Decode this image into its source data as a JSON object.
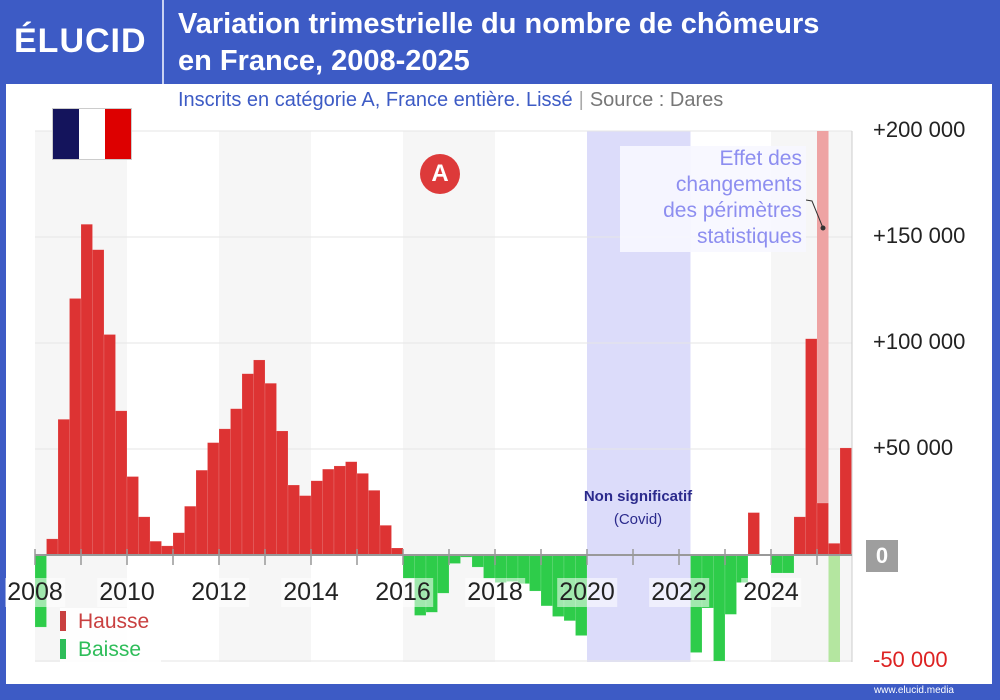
{
  "header": {
    "logo": "ÉLUCID",
    "title_line1": "Variation trimestrielle du nombre de chômeurs",
    "title_line2": "en France, 2008-2025",
    "subtitle": "Inscrits en catégorie A, France entière. Lissé",
    "separator": "|",
    "source": "Source : Dares"
  },
  "footer": {
    "url": "www.elucid.media"
  },
  "badge": "A",
  "colors": {
    "brand": "#3d5bc5",
    "hausse": "#dd3333",
    "baisse": "#2ecc4a",
    "covid_band": "#dcdcfa",
    "effect_up": "#eea3a3",
    "effect_down": "#b4e6a0",
    "flag": [
      "#14145c",
      "#ffffff",
      "#dd0000"
    ]
  },
  "annotations": {
    "effect": [
      "Effet des",
      "changements",
      "des périmètres",
      "statistiques"
    ],
    "covid_title": "Non significatif",
    "covid_sub": "(Covid)"
  },
  "legend": [
    {
      "label": "Hausse",
      "color": "#c94040"
    },
    {
      "label": "Baisse",
      "color": "#2ebd59"
    }
  ],
  "chart_data": {
    "type": "bar",
    "title": "Variation trimestrielle du nombre de chômeurs en France, 2008-2025",
    "frequency": "quarterly",
    "start": "2008-Q1",
    "x_ticks": [
      "2008",
      "2010",
      "2012",
      "2014",
      "2016",
      "2018",
      "2020",
      "2022",
      "2024"
    ],
    "y_ticks": [
      {
        "value": 200000,
        "label": "+200 000"
      },
      {
        "value": 150000,
        "label": "+150 000"
      },
      {
        "value": 100000,
        "label": "+100 000"
      },
      {
        "value": 50000,
        "label": "+50 000"
      },
      {
        "value": 0,
        "label": "0"
      },
      {
        "value": -50000,
        "label": "-50 000"
      }
    ],
    "ylim": [
      -50000,
      200000
    ],
    "y_axis_side": "right",
    "grid": true,
    "legend_position": "bottom-left",
    "values": [
      -34000,
      7600,
      64000,
      121000,
      156000,
      144000,
      104000,
      68000,
      37000,
      18000,
      6500,
      4300,
      10500,
      23000,
      40000,
      53000,
      59500,
      69000,
      85500,
      92000,
      81000,
      58500,
      33000,
      28000,
      35000,
      40500,
      42000,
      44000,
      38500,
      30500,
      14000,
      3300,
      -11000,
      -28500,
      -27000,
      -18000,
      -4000,
      -1000,
      -5700,
      -11000,
      -13000,
      -12500,
      -13500,
      -17000,
      -24000,
      -29000,
      -31000,
      -38000,
      null,
      null,
      null,
      null,
      null,
      null,
      null,
      null,
      null,
      -46000,
      -25000,
      -50000,
      -28000,
      -13000,
      20000,
      0,
      -8500,
      -8500,
      18000,
      102000,
      24500,
      5500,
      50500
    ],
    "non_significant_period": [
      "2020-Q1",
      "2022-Q1"
    ],
    "statistical_effect": [
      {
        "quarter": "2025-Q1",
        "direction": "up",
        "exceeds": 200000
      },
      {
        "quarter": "2025-Q2",
        "direction": "down",
        "exceeds": -50000
      }
    ]
  }
}
